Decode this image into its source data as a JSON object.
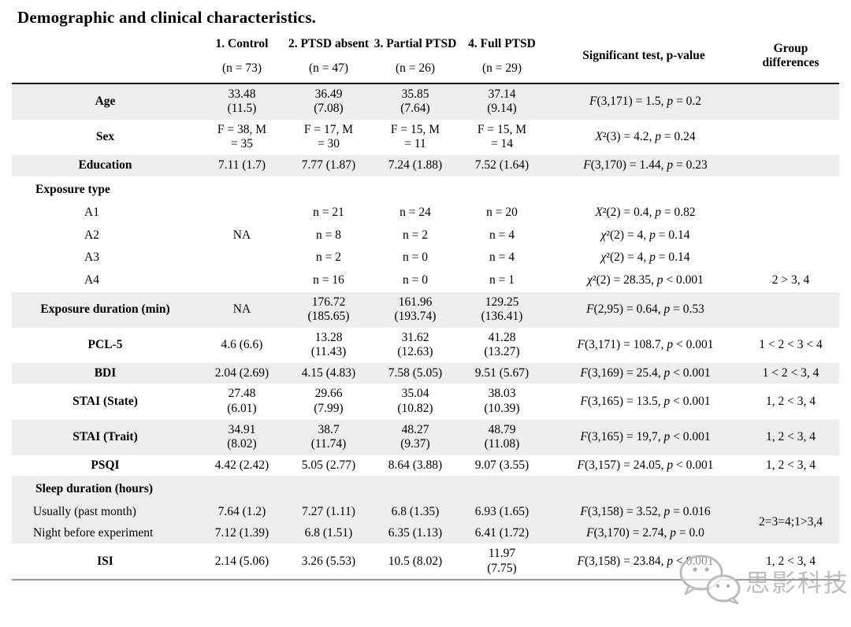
{
  "title": "Demographic and clinical characteristics.",
  "watermark": {
    "brand_text": "思影科技",
    "icon": "wechat-logo-icon"
  },
  "colors": {
    "row_shade": "#eeeeee",
    "header_rule": "#000000",
    "bottom_rule": "#9a9a9a",
    "watermark_gray": "#bcbcbc"
  },
  "table": {
    "columns": [
      {
        "key": "label",
        "label": "",
        "sub": ""
      },
      {
        "key": "c1",
        "label": "1. Control",
        "sub": "(n = 73)"
      },
      {
        "key": "c2",
        "label": "2. PTSD absent",
        "sub": "(n = 47)"
      },
      {
        "key": "c3",
        "label": "3. Partial PTSD",
        "sub": "(n = 26)"
      },
      {
        "key": "c4",
        "label": "4. Full PTSD",
        "sub": "(n = 29)"
      },
      {
        "key": "stat",
        "label": "Significant test, p-value",
        "sub": ""
      },
      {
        "key": "diff",
        "label": "Group differences",
        "sub": ""
      }
    ],
    "rows": [
      {
        "label": "Age",
        "style": "metric",
        "shaded": true,
        "c1": "33.48\n(11.5)",
        "c2": "36.49\n(7.08)",
        "c3": "35.85\n(7.64)",
        "c4": "37.14\n(9.14)",
        "stat": [
          {
            "i": "F"
          },
          {
            "t": "(3,171) = 1.5, "
          },
          {
            "i": "p"
          },
          {
            "t": " = 0.2"
          }
        ],
        "diff": ""
      },
      {
        "label": "Sex",
        "style": "metric",
        "shaded": false,
        "c1": "F = 38, M\n= 35",
        "c2": "F = 17, M\n= 30",
        "c3": "F = 15, M\n= 11",
        "c4": "F = 15, M\n= 14",
        "stat": [
          {
            "i": "X"
          },
          {
            "t": "²(3) = 4.2, "
          },
          {
            "i": "p"
          },
          {
            "t": " = 0.24"
          }
        ],
        "diff": ""
      },
      {
        "label": "Education",
        "style": "metric",
        "shaded": true,
        "c1": "7.11 (1.7)",
        "c2": "7.77 (1.87)",
        "c3": "7.24 (1.88)",
        "c4": "7.52 (1.64)",
        "stat": [
          {
            "i": "F"
          },
          {
            "t": "(3,170) = 1.44, "
          },
          {
            "i": "p"
          },
          {
            "t": " = 0.23"
          }
        ],
        "diff": ""
      },
      {
        "label": "Exposure type",
        "style": "section",
        "shaded": false,
        "c1": "",
        "c2": "",
        "c3": "",
        "c4": "",
        "stat": [],
        "diff": ""
      },
      {
        "label": "A1",
        "style": "sub",
        "shaded": false,
        "c1": "",
        "c2": "n = 21",
        "c3": "n = 24",
        "c4": "n = 20",
        "stat": [
          {
            "i": "X"
          },
          {
            "t": "²(2) = 0.4, "
          },
          {
            "i": "p"
          },
          {
            "t": " = 0.82"
          }
        ],
        "diff": ""
      },
      {
        "label": "A2",
        "style": "sub",
        "shaded": false,
        "c1": "NA",
        "c2": "n = 8",
        "c3": "n = 2",
        "c4": "n = 4",
        "stat": [
          {
            "i": "χ"
          },
          {
            "t": "²(2) = 4, "
          },
          {
            "i": "p"
          },
          {
            "t": " = 0.14"
          }
        ],
        "diff": ""
      },
      {
        "label": "A3",
        "style": "sub",
        "shaded": false,
        "c1": "",
        "c2": "n = 2",
        "c3": "n = 0",
        "c4": "n = 4",
        "stat": [
          {
            "i": "χ"
          },
          {
            "t": "²(2) = 4, "
          },
          {
            "i": "p"
          },
          {
            "t": " = 0.14"
          }
        ],
        "diff": ""
      },
      {
        "label": "A4",
        "style": "sub",
        "shaded": false,
        "c1": "",
        "c2": "n = 16",
        "c3": "n = 0",
        "c4": "n = 1",
        "stat": [
          {
            "i": "χ"
          },
          {
            "t": "²(2) = 28.35, "
          },
          {
            "i": "p"
          },
          {
            "t": " < 0.001"
          }
        ],
        "diff": "2 > 3, 4"
      },
      {
        "label": "Exposure duration (min)",
        "style": "metric",
        "shaded": true,
        "c1": "NA",
        "c2": "176.72\n(185.65)",
        "c3": "161.96\n(193.74)",
        "c4": "129.25\n(136.41)",
        "stat": [
          {
            "i": "F"
          },
          {
            "t": "(2,95) = 0.64, "
          },
          {
            "i": "p"
          },
          {
            "t": " = 0.53"
          }
        ],
        "diff": ""
      },
      {
        "label": "PCL-5",
        "style": "metric",
        "shaded": false,
        "c1": "4.6 (6.6)",
        "c2": "13.28\n(11.43)",
        "c3": "31.62\n(12.63)",
        "c4": "41.28\n(13.27)",
        "stat": [
          {
            "i": "F"
          },
          {
            "t": "(3,171) = 108.7, "
          },
          {
            "i": "p"
          },
          {
            "t": " < 0.001"
          }
        ],
        "diff": "1 < 2 < 3 < 4"
      },
      {
        "label": "BDI",
        "style": "metric",
        "shaded": true,
        "c1": "2.04 (2.69)",
        "c2": "4.15 (4.83)",
        "c3": "7.58 (5.05)",
        "c4": "9.51 (5.67)",
        "stat": [
          {
            "i": "F"
          },
          {
            "t": "(3,169) = 25.4, "
          },
          {
            "i": "p"
          },
          {
            "t": " < 0.001"
          }
        ],
        "diff": "1 < 2 < 3, 4"
      },
      {
        "label": "STAI (State)",
        "style": "metric",
        "shaded": false,
        "c1": "27.48\n(6.01)",
        "c2": "29.66\n(7.99)",
        "c3": "35.04\n(10.82)",
        "c4": "38.03\n(10.39)",
        "stat": [
          {
            "i": "F"
          },
          {
            "t": "(3,165) = 13.5, "
          },
          {
            "i": "p"
          },
          {
            "t": " < 0.001"
          }
        ],
        "diff": "1, 2 < 3, 4"
      },
      {
        "label": "STAI (Trait)",
        "style": "metric",
        "shaded": true,
        "c1": "34.91\n(8.02)",
        "c2": "38.7\n(11.74)",
        "c3": "48.27\n(9.37)",
        "c4": "48.79\n(11.08)",
        "stat": [
          {
            "i": "F"
          },
          {
            "t": "(3,165) = 19,7, "
          },
          {
            "i": "p"
          },
          {
            "t": " < 0.001"
          }
        ],
        "diff": "1, 2 < 3, 4"
      },
      {
        "label": "PSQI",
        "style": "metric",
        "shaded": false,
        "c1": "4.42 (2.42)",
        "c2": "5.05 (2.77)",
        "c3": "8.64 (3.88)",
        "c4": "9.07 (3.55)",
        "stat": [
          {
            "i": "F"
          },
          {
            "t": "(3,157) = 24.05, "
          },
          {
            "i": "p"
          },
          {
            "t": " < 0.001"
          }
        ],
        "diff": "1, 2 < 3, 4"
      },
      {
        "label": "Sleep duration (hours)",
        "style": "section",
        "shaded": true,
        "c1": "",
        "c2": "",
        "c3": "",
        "c4": "",
        "stat": [],
        "diff": ""
      },
      {
        "label": "Usually (past month)",
        "style": "subleft",
        "shaded": true,
        "c1": "7.64 (1.2)",
        "c2": "7.27 (1.11)",
        "c3": "6.8 (1.35)",
        "c4": "6.93 (1.65)",
        "stat": [
          {
            "i": "F"
          },
          {
            "t": "(3,158) = 3.52, "
          },
          {
            "i": "p"
          },
          {
            "t": " = 0.016"
          }
        ],
        "diff": "2=3=4;1>3,4",
        "diffRowspan": 2
      },
      {
        "label": "Night before experiment",
        "style": "subleft",
        "shaded": true,
        "c1": "7.12 (1.39)",
        "c2": "6.8 (1.51)",
        "c3": "6.35 (1.13)",
        "c4": "6.41 (1.72)",
        "stat": [
          {
            "i": "F"
          },
          {
            "t": "(3,170) = 2.74, "
          },
          {
            "i": "p"
          },
          {
            "t": " = 0.0"
          }
        ],
        "diffSkip": true
      },
      {
        "label": "ISI",
        "style": "metric",
        "shaded": false,
        "c1": "2.14 (5.06)",
        "c2": "3.26 (5.53)",
        "c3": "10.5 (8.02)",
        "c4": "11.97\n(7.75)",
        "stat": [
          {
            "i": "F"
          },
          {
            "t": "(3,158) = 23.84, "
          },
          {
            "i": "p"
          },
          {
            "t": " < 0.001"
          }
        ],
        "diff": "1, 2 < 3, 4"
      }
    ]
  }
}
